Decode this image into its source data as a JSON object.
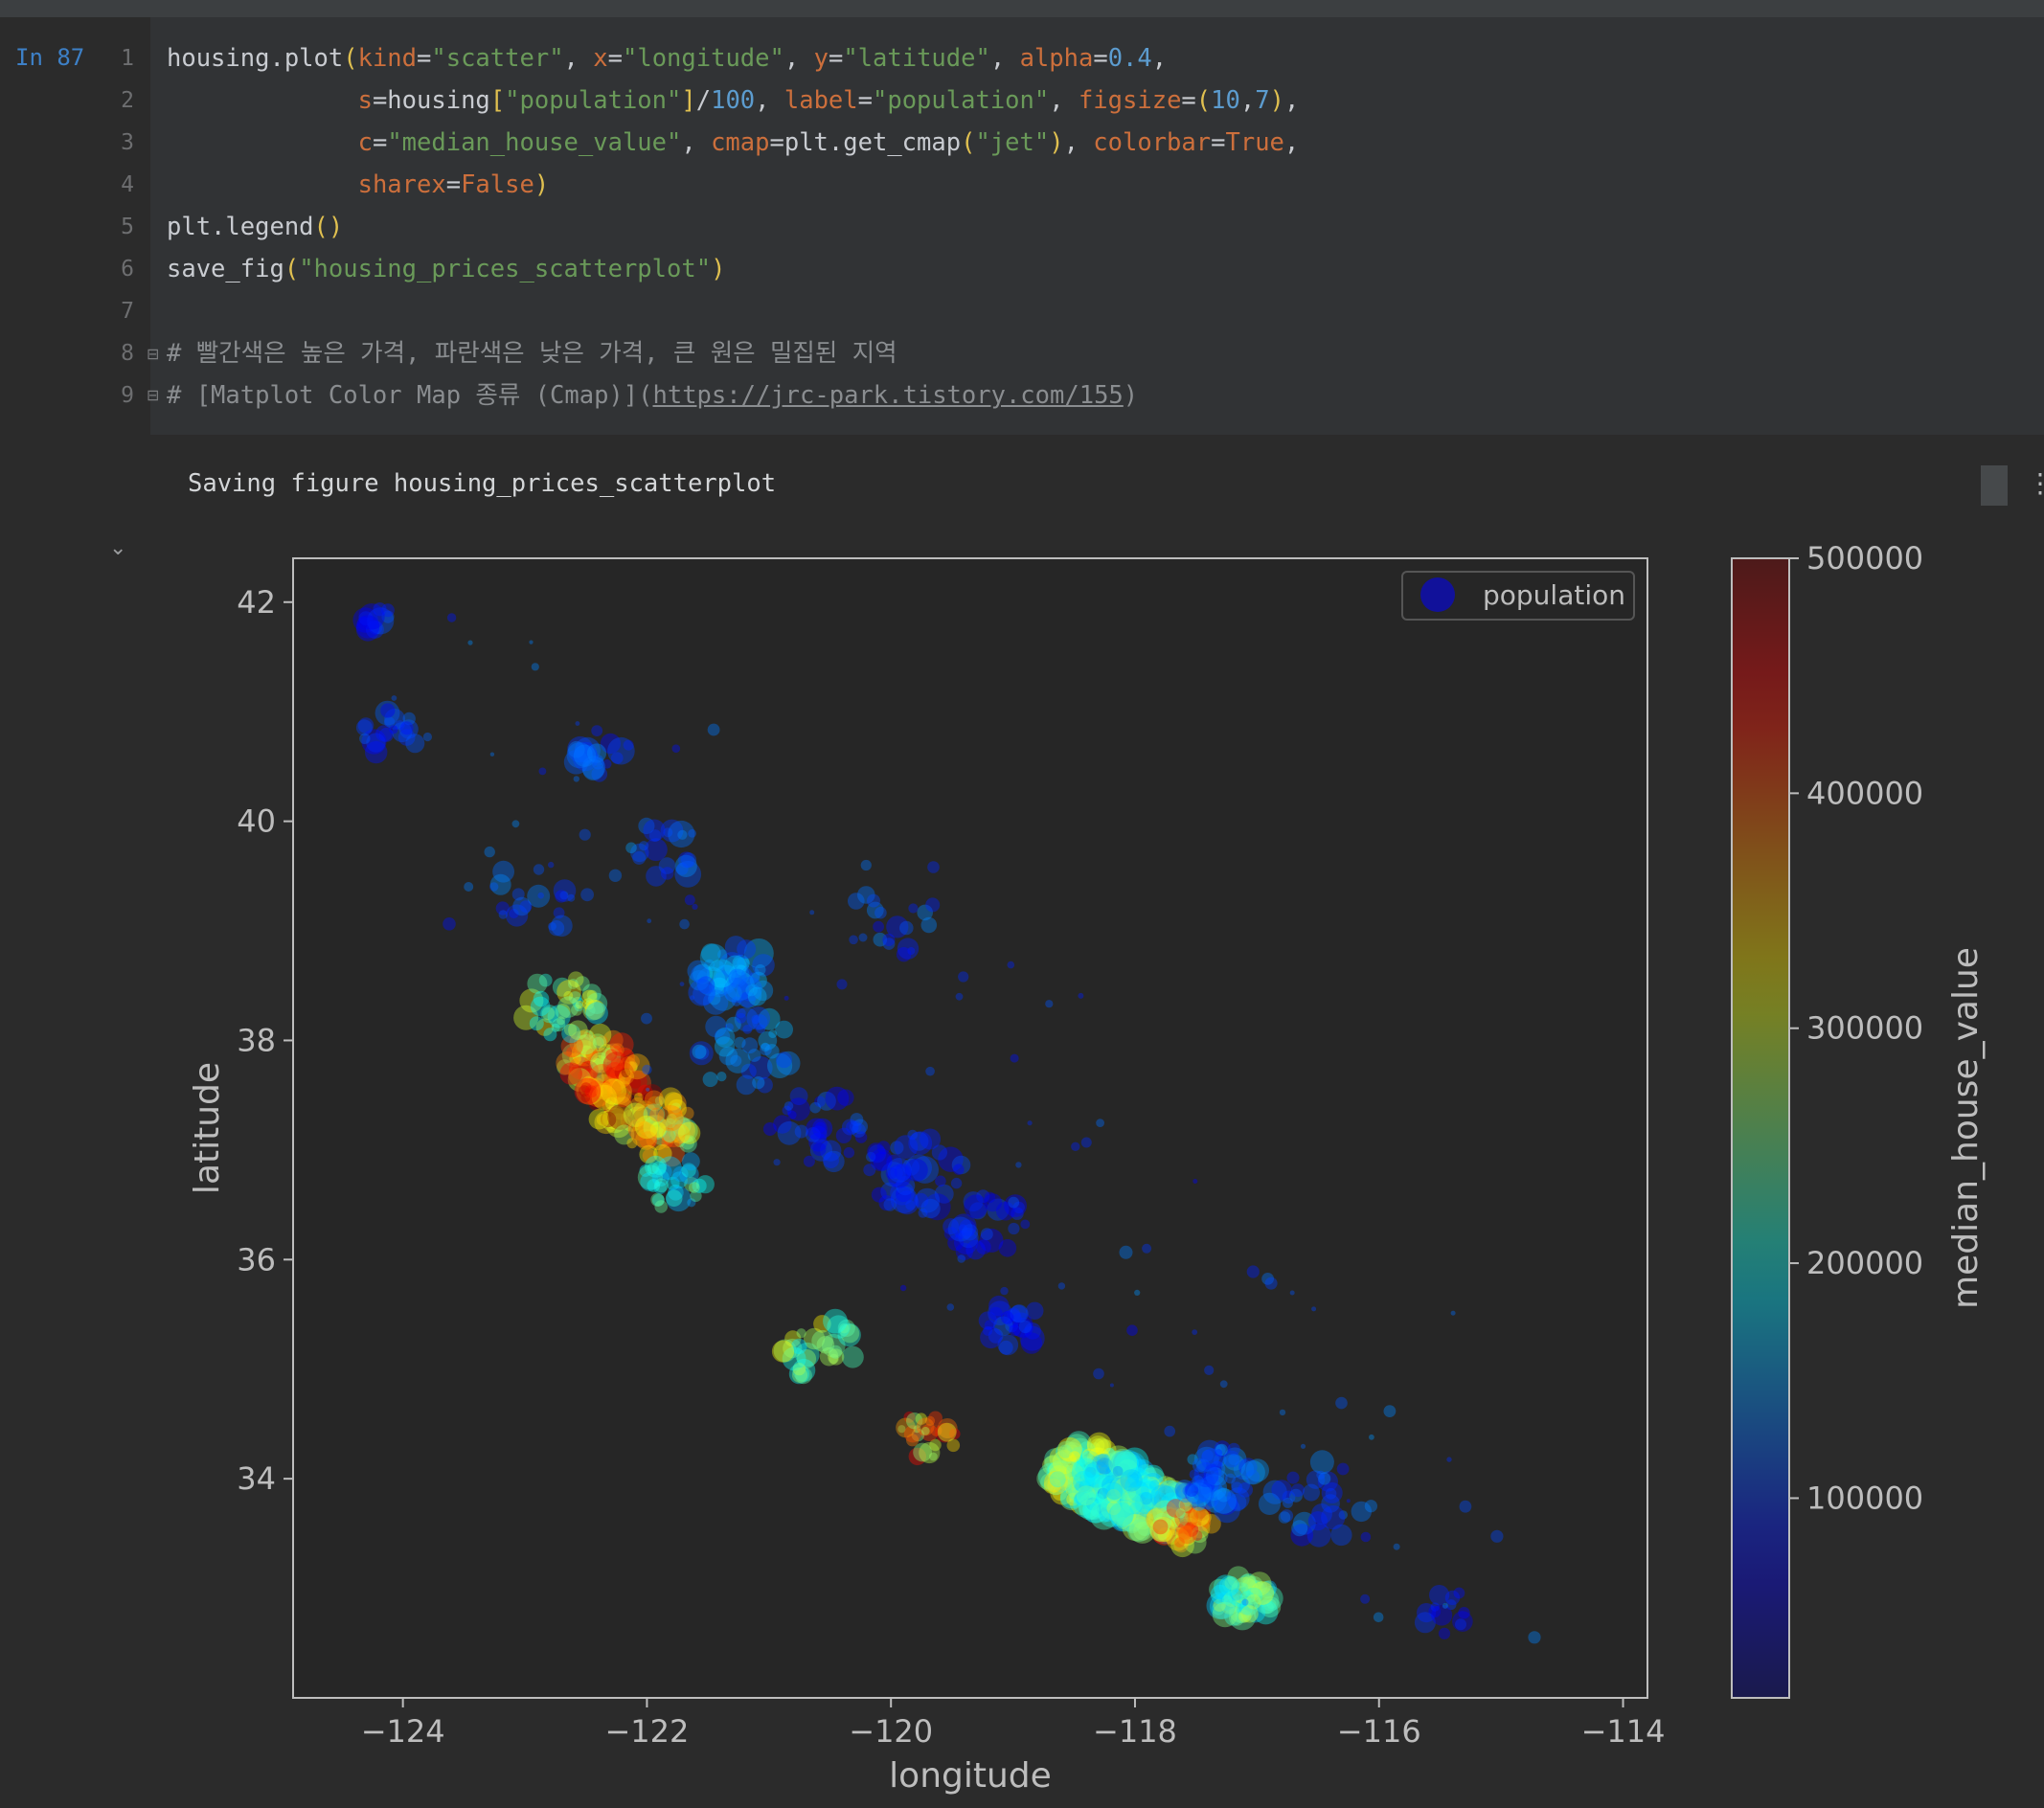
{
  "notebook": {
    "cell_prompt": "In 87",
    "line_numbers": [
      "1",
      "2",
      "3",
      "4",
      "5",
      "6",
      "7",
      "8",
      "9"
    ],
    "code_lines": [
      "housing.plot(kind=\"scatter\", x=\"longitude\", y=\"latitude\", alpha=0.4,",
      "             s=housing[\"population\"]/100, label=\"population\", figsize=(10,7),",
      "             c=\"median_house_value\", cmap=plt.get_cmap(\"jet\"), colorbar=True,",
      "             sharex=False)",
      "plt.legend()",
      "save_fig(\"housing_prices_scatterplot\")",
      "",
      "# 빨간색은 높은 가격, 파란색은 낮은 가격, 큰 원은 밀집된 지역",
      "# [Matplot Color Map 종류 (Cmap)](https://jrc-park.tistory.com/155)"
    ],
    "output_text": "Saving figure housing_prices_scatterplot",
    "collapse_icon": "chevron-down-icon",
    "menu_icon": "more-vertical-icon"
  },
  "chart_data": {
    "type": "scatter",
    "title": "",
    "xlabel": "longitude",
    "ylabel": "latitude",
    "xlim": [
      -124.9,
      -113.8
    ],
    "ylim": [
      32.0,
      42.4
    ],
    "xticks": [
      -124,
      -122,
      -120,
      -118,
      -116,
      -114
    ],
    "xtick_labels": [
      "−124",
      "−122",
      "−120",
      "−118",
      "−116",
      "−114"
    ],
    "yticks": [
      34,
      36,
      38,
      40,
      42
    ],
    "ytick_labels": [
      "34",
      "36",
      "38",
      "40",
      "42"
    ],
    "legend": {
      "label": "population",
      "placement": "upper right"
    },
    "colorbar": {
      "label": "median_house_value",
      "cmap": "jet",
      "range": [
        15000,
        500000
      ],
      "ticks": [
        100000,
        200000,
        300000,
        400000,
        500000
      ],
      "tick_labels": [
        "100000",
        "200000",
        "300000",
        "400000",
        "500000"
      ]
    },
    "alpha": 0.4,
    "grid": false,
    "clusters": [
      {
        "lon": -124.2,
        "lat": 41.8,
        "spread": 0.1,
        "n": 12,
        "value": 90000,
        "size": 12
      },
      {
        "lon": -124.1,
        "lat": 40.8,
        "spread": 0.15,
        "n": 20,
        "value": 100000,
        "size": 11
      },
      {
        "lon": -122.35,
        "lat": 40.6,
        "spread": 0.15,
        "n": 18,
        "value": 110000,
        "size": 12
      },
      {
        "lon": -121.9,
        "lat": 39.7,
        "spread": 0.2,
        "n": 20,
        "value": 120000,
        "size": 12
      },
      {
        "lon": -122.9,
        "lat": 39.3,
        "spread": 0.25,
        "n": 20,
        "value": 110000,
        "size": 10
      },
      {
        "lon": -122.4,
        "lat": 37.8,
        "spread": 0.18,
        "n": 60,
        "value": 360000,
        "size": 12
      },
      {
        "lon": -122.2,
        "lat": 37.5,
        "spread": 0.2,
        "n": 60,
        "value": 420000,
        "size": 12
      },
      {
        "lon": -121.9,
        "lat": 37.2,
        "spread": 0.2,
        "n": 50,
        "value": 320000,
        "size": 12
      },
      {
        "lon": -122.7,
        "lat": 38.3,
        "spread": 0.2,
        "n": 40,
        "value": 260000,
        "size": 11
      },
      {
        "lon": -121.8,
        "lat": 36.7,
        "spread": 0.18,
        "n": 30,
        "value": 200000,
        "size": 11
      },
      {
        "lon": -121.3,
        "lat": 38.6,
        "spread": 0.2,
        "n": 50,
        "value": 140000,
        "size": 13
      },
      {
        "lon": -121.2,
        "lat": 37.9,
        "spread": 0.25,
        "n": 40,
        "value": 130000,
        "size": 11
      },
      {
        "lon": -120.6,
        "lat": 37.2,
        "spread": 0.25,
        "n": 35,
        "value": 95000,
        "size": 11
      },
      {
        "lon": -119.8,
        "lat": 36.8,
        "spread": 0.25,
        "n": 45,
        "value": 90000,
        "size": 12
      },
      {
        "lon": -119.2,
        "lat": 36.3,
        "spread": 0.2,
        "n": 30,
        "value": 85000,
        "size": 11
      },
      {
        "lon": -119.0,
        "lat": 35.4,
        "spread": 0.15,
        "n": 25,
        "value": 90000,
        "size": 11
      },
      {
        "lon": -120.6,
        "lat": 35.2,
        "spread": 0.2,
        "n": 30,
        "value": 260000,
        "size": 11
      },
      {
        "lon": -119.7,
        "lat": 34.4,
        "spread": 0.15,
        "n": 25,
        "value": 350000,
        "size": 10
      },
      {
        "lon": -118.4,
        "lat": 34.05,
        "spread": 0.2,
        "n": 120,
        "value": 260000,
        "size": 12
      },
      {
        "lon": -118.15,
        "lat": 33.9,
        "spread": 0.2,
        "n": 120,
        "value": 190000,
        "size": 13
      },
      {
        "lon": -117.9,
        "lat": 33.75,
        "spread": 0.2,
        "n": 80,
        "value": 230000,
        "size": 12
      },
      {
        "lon": -117.6,
        "lat": 33.6,
        "spread": 0.15,
        "n": 50,
        "value": 360000,
        "size": 11
      },
      {
        "lon": -117.3,
        "lat": 34.0,
        "spread": 0.2,
        "n": 60,
        "value": 120000,
        "size": 12
      },
      {
        "lon": -117.1,
        "lat": 32.9,
        "spread": 0.15,
        "n": 60,
        "value": 230000,
        "size": 12
      },
      {
        "lon": -116.5,
        "lat": 33.8,
        "spread": 0.25,
        "n": 30,
        "value": 110000,
        "size": 11
      },
      {
        "lon": -115.5,
        "lat": 32.8,
        "spread": 0.15,
        "n": 12,
        "value": 80000,
        "size": 10
      },
      {
        "lon": -120.0,
        "lat": 39.1,
        "spread": 0.25,
        "n": 20,
        "value": 110000,
        "size": 10
      }
    ]
  }
}
